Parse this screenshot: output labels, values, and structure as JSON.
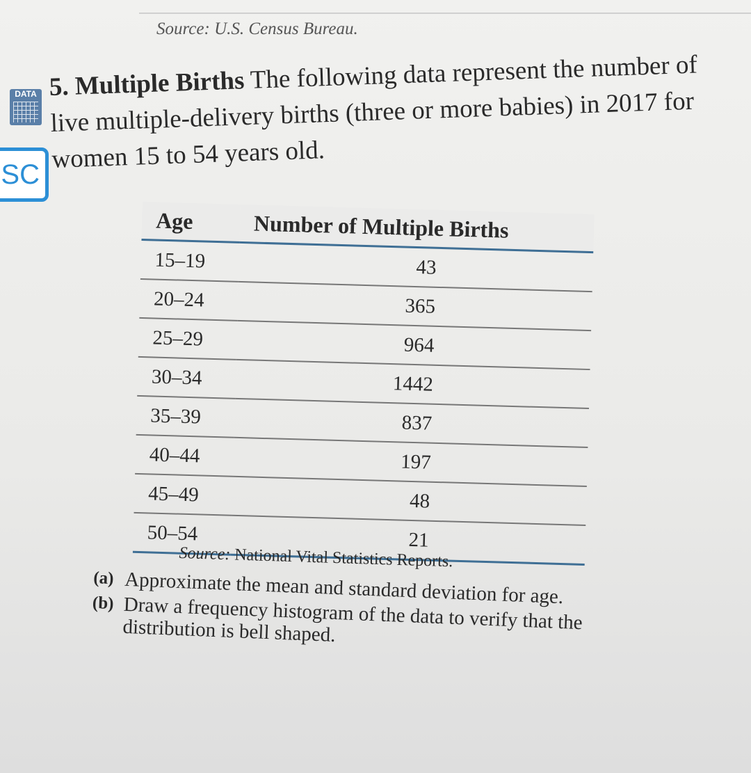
{
  "top_source": "Source: U.S. Census Bureau.",
  "badges": {
    "data": "DATA",
    "sc": "SC"
  },
  "problem": {
    "number": "5.",
    "title": "Multiple Births",
    "text": "The following data represent the number of live multiple-delivery births (three or more babies) in 2017 for women 15 to 54 years old."
  },
  "table": {
    "headers": [
      "Age",
      "Number of Multiple Births"
    ],
    "rows": [
      [
        "15–19",
        43
      ],
      [
        "20–24",
        365
      ],
      [
        "25–29",
        964
      ],
      [
        "30–34",
        1442
      ],
      [
        "35–39",
        837
      ],
      [
        "40–44",
        197
      ],
      [
        "45–49",
        48
      ],
      [
        "50–54",
        21
      ]
    ]
  },
  "table_source": {
    "label": "Source:",
    "text": "National Vital Statistics Reports."
  },
  "questions": [
    {
      "label": "(a)",
      "text": "Approximate the mean and standard deviation for age."
    },
    {
      "label": "(b)",
      "text": "Draw a frequency histogram of the data to verify that the distribution is bell shaped."
    }
  ]
}
